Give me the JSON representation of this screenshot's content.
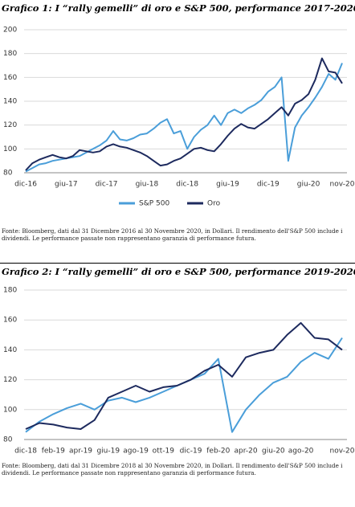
{
  "chart_data": [
    {
      "type": "line",
      "title": "Grafico 1: I “rally gemelli” di oro e S&P 500, performance 2017-2020",
      "source": "Fonte: Bloomberg, dati dal 31 Dicembre 2016 al 30 Novembre 2020, in Dollari. Il rendimento dell'S&P 500 include i dividendi. Le performance passate non rappresentano garanzia di performance futura.",
      "categories": [
        "dic-16",
        null,
        null,
        null,
        null,
        null,
        "giu-17",
        null,
        null,
        null,
        null,
        null,
        "dic-17",
        null,
        null,
        null,
        null,
        null,
        "giu-18",
        null,
        null,
        null,
        null,
        null,
        "dic-18",
        null,
        null,
        null,
        null,
        null,
        "giu-19",
        null,
        null,
        null,
        null,
        null,
        "dic-19",
        null,
        null,
        null,
        null,
        null,
        "giu-20",
        null,
        null,
        null,
        null,
        "nov-20"
      ],
      "series": [
        {
          "name": "S&P 500",
          "color": "#4a9ed9",
          "values": [
            81,
            84,
            87,
            88,
            90,
            91,
            92,
            93,
            94,
            97,
            100,
            103,
            107,
            115,
            108,
            107,
            109,
            112,
            113,
            117,
            122,
            125,
            113,
            115,
            100,
            110,
            116,
            120,
            128,
            120,
            130,
            133,
            130,
            134,
            137,
            141,
            148,
            152,
            160,
            90,
            118,
            128,
            135,
            143,
            152,
            163,
            158,
            172
          ]
        },
        {
          "name": "Oro",
          "color": "#1d2a5e",
          "values": [
            82,
            88,
            91,
            93,
            95,
            93,
            92,
            94,
            99,
            98,
            97,
            98,
            102,
            104,
            102,
            101,
            99,
            97,
            94,
            90,
            86,
            87,
            90,
            92,
            96,
            100,
            101,
            99,
            98,
            104,
            111,
            117,
            121,
            118,
            117,
            121,
            125,
            130,
            135,
            128,
            138,
            141,
            146,
            158,
            176,
            165,
            164,
            155
          ]
        }
      ],
      "ylim": [
        80,
        200
      ],
      "yticks": [
        80,
        100,
        120,
        140,
        160,
        180,
        200
      ],
      "grid": true,
      "legend": "bottom"
    },
    {
      "type": "line",
      "title": "Grafico 2: I “rally gemelli” di oro e S&P 500, performance 2019-2020",
      "source": "Fonte: Bloomberg, dati dal 31 Dicembre 2018 al 30 Novembre 2020, in Dollari. Il rendimento dell'S&P 500 include i dividendi. Le performance passate non rappresentano garanzia di performance futura.",
      "categories": [
        "dic-18",
        null,
        "feb-19",
        null,
        "apr-19",
        null,
        "giu-19",
        null,
        "ago-19",
        null,
        "ott-19",
        null,
        "dic-19",
        null,
        "feb-20",
        null,
        "apr-20",
        null,
        "giu-20",
        null,
        "ago-20",
        null,
        null,
        "nov-20"
      ],
      "series": [
        {
          "color": "#4a9ed9",
          "values": [
            85,
            92,
            97,
            101,
            104,
            100,
            106,
            108,
            105,
            108,
            112,
            116,
            120,
            124,
            134,
            85,
            100,
            110,
            118,
            122,
            132,
            138,
            134,
            148
          ]
        },
        {
          "color": "#1d2a5e",
          "values": [
            87,
            91,
            90,
            88,
            87,
            93,
            108,
            112,
            116,
            112,
            115,
            116,
            120,
            126,
            130,
            122,
            135,
            138,
            140,
            150,
            158,
            148,
            147,
            140
          ]
        }
      ],
      "ylim": [
        80,
        180
      ],
      "yticks": [
        80,
        100,
        120,
        140,
        160,
        180
      ],
      "grid": true,
      "legend": false
    }
  ]
}
